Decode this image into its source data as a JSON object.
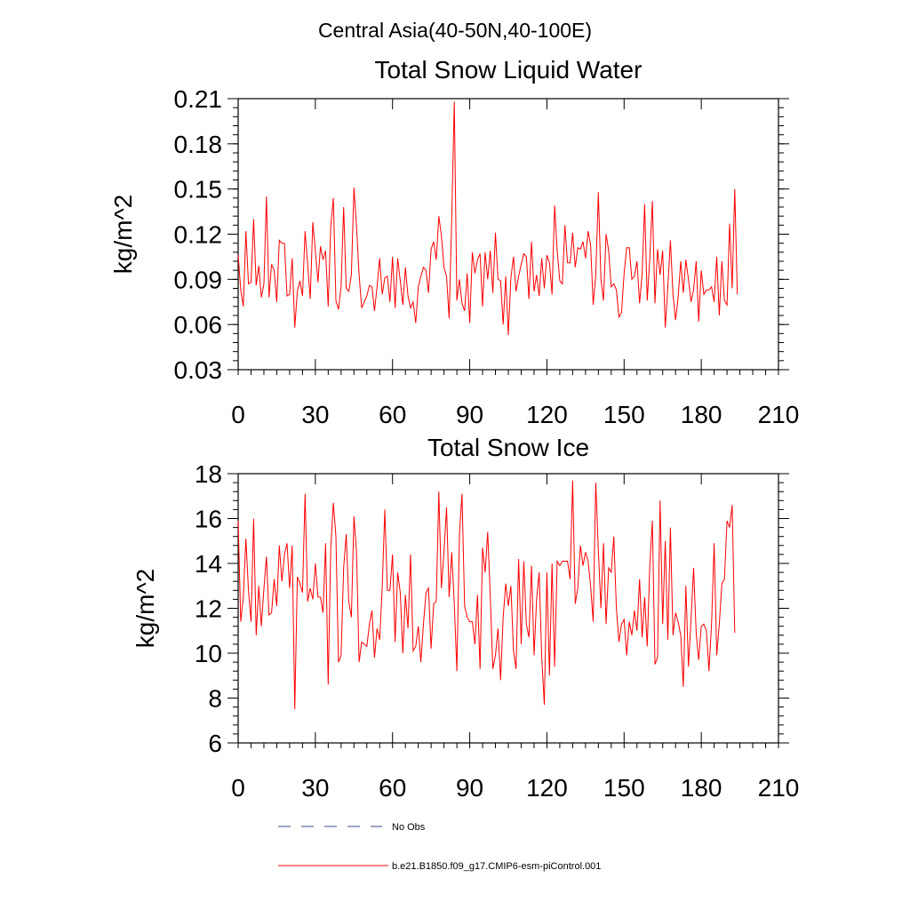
{
  "figure": {
    "title": "Central Asia(40-50N,40-100E)"
  },
  "legend": {
    "entries": [
      {
        "label": "No Obs",
        "color": "#3b4a8a",
        "style": "dashed"
      },
      {
        "label": "b.e21.B1850.f09_g17.CMIP6-esm-piControl.001",
        "color": "#ff0000",
        "style": "solid"
      }
    ]
  },
  "chart_data": [
    {
      "type": "line",
      "title": "Total Snow Liquid Water",
      "xlabel": "",
      "ylabel": "kg/m^2",
      "xlim": [
        0,
        210
      ],
      "ylim": [
        0.03,
        0.21
      ],
      "xticks": [
        0,
        30,
        60,
        90,
        120,
        150,
        180,
        210
      ],
      "xtick_labels": [
        "0",
        "30",
        "60",
        "90",
        "120",
        "150",
        "180",
        "210"
      ],
      "yticks": [
        0.03,
        0.06,
        0.09,
        0.12,
        0.15,
        0.18,
        0.21
      ],
      "ytick_labels": [
        "0.03",
        "0.06",
        "0.09",
        "0.12",
        "0.15",
        "0.18",
        "0.21"
      ],
      "grid": false,
      "series": [
        {
          "name": "b.e21.B1850.f09_g17.CMIP6-esm-piControl.001",
          "color": "#ff0000",
          "x_start": 0,
          "values": [
            0.106,
            0.083,
            0.072,
            0.122,
            0.087,
            0.088,
            0.13,
            0.086,
            0.099,
            0.078,
            0.087,
            0.145,
            0.078,
            0.1,
            0.096,
            0.075,
            0.116,
            0.114,
            0.114,
            0.079,
            0.08,
            0.104,
            0.058,
            0.082,
            0.089,
            0.079,
            0.122,
            0.1,
            0.077,
            0.128,
            0.109,
            0.088,
            0.112,
            0.103,
            0.109,
            0.072,
            0.125,
            0.144,
            0.076,
            0.07,
            0.085,
            0.138,
            0.084,
            0.082,
            0.093,
            0.151,
            0.125,
            0.093,
            0.071,
            0.075,
            0.079,
            0.086,
            0.085,
            0.069,
            0.085,
            0.104,
            0.08,
            0.091,
            0.092,
            0.075,
            0.105,
            0.071,
            0.104,
            0.089,
            0.073,
            0.098,
            0.079,
            0.071,
            0.075,
            0.061,
            0.085,
            0.092,
            0.098,
            0.096,
            0.081,
            0.11,
            0.115,
            0.103,
            0.132,
            0.119,
            0.098,
            0.092,
            0.064,
            0.13,
            0.208,
            0.076,
            0.09,
            0.074,
            0.069,
            0.094,
            0.061,
            0.108,
            0.094,
            0.103,
            0.107,
            0.072,
            0.108,
            0.09,
            0.109,
            0.081,
            0.121,
            0.09,
            0.089,
            0.06,
            0.092,
            0.053,
            0.091,
            0.105,
            0.082,
            0.092,
            0.1,
            0.107,
            0.105,
            0.077,
            0.115,
            0.082,
            0.093,
            0.079,
            0.104,
            0.084,
            0.106,
            0.101,
            0.08,
            0.139,
            0.109,
            0.089,
            0.087,
            0.126,
            0.101,
            0.101,
            0.121,
            0.098,
            0.111,
            0.11,
            0.115,
            0.104,
            0.122,
            0.113,
            0.073,
            0.093,
            0.148,
            0.09,
            0.076,
            0.12,
            0.109,
            0.085,
            0.087,
            0.083,
            0.065,
            0.068,
            0.094,
            0.111,
            0.111,
            0.09,
            0.092,
            0.102,
            0.074,
            0.094,
            0.14,
            0.076,
            0.104,
            0.142,
            0.074,
            0.11,
            0.093,
            0.109,
            0.058,
            0.085,
            0.116,
            0.08,
            0.063,
            0.078,
            0.102,
            0.081,
            0.103,
            0.09,
            0.075,
            0.083,
            0.102,
            0.062,
            0.096,
            0.08,
            0.083,
            0.083,
            0.085,
            0.075,
            0.105,
            0.066,
            0.102,
            0.076,
            0.073,
            0.127,
            0.084,
            0.15,
            0.08
          ]
        }
      ]
    },
    {
      "type": "line",
      "title": "Total Snow Ice",
      "xlabel": "",
      "ylabel": "kg/m^2",
      "xlim": [
        0,
        210
      ],
      "ylim": [
        6,
        18
      ],
      "xticks": [
        0,
        30,
        60,
        90,
        120,
        150,
        180,
        210
      ],
      "xtick_labels": [
        "0",
        "30",
        "60",
        "90",
        "120",
        "150",
        "180",
        "210"
      ],
      "yticks": [
        6,
        8,
        10,
        12,
        14,
        16,
        18
      ],
      "ytick_labels": [
        "6",
        "8",
        "10",
        "12",
        "14",
        "16",
        "18"
      ],
      "grid": false,
      "series": [
        {
          "name": "b.e21.B1850.f09_g17.CMIP6-esm-piControl.001",
          "color": "#ff0000",
          "x_start": 0,
          "values": [
            15.9,
            11.4,
            12.5,
            15.1,
            12.8,
            11.4,
            16.0,
            10.8,
            13.0,
            11.2,
            12.9,
            14.3,
            11.7,
            11.8,
            13.3,
            12.1,
            14.8,
            13.2,
            14.4,
            14.9,
            12.9,
            14.8,
            7.5,
            13.4,
            13.1,
            12.7,
            17.1,
            12.3,
            12.9,
            12.4,
            14.0,
            12.5,
            12.5,
            11.8,
            14.9,
            8.6,
            14.7,
            16.7,
            15.2,
            9.6,
            9.9,
            13.8,
            15.3,
            12.3,
            11.6,
            16.1,
            14.5,
            9.6,
            10.5,
            10.4,
            10.3,
            11.3,
            11.9,
            9.8,
            11.1,
            10.6,
            12.9,
            16.4,
            12.8,
            12.8,
            14.4,
            10.5,
            13.6,
            12.7,
            10.0,
            12.6,
            11.1,
            14.4,
            10.1,
            10.3,
            11.2,
            9.6,
            11.3,
            12.7,
            12.9,
            10.2,
            12.2,
            12.3,
            17.2,
            12.9,
            14.5,
            16.5,
            12.5,
            14.5,
            12.2,
            9.2,
            15.3,
            17.1,
            12.1,
            11.6,
            11.4,
            11.4,
            10.4,
            12.6,
            9.3,
            14.7,
            13.6,
            15.4,
            12.5,
            9.3,
            9.9,
            11.1,
            8.8,
            11.6,
            13.1,
            12.1,
            13.0,
            10.1,
            9.3,
            14.2,
            10.4,
            14.1,
            11.3,
            10.7,
            13.9,
            9.9,
            12.4,
            13.6,
            9.8,
            7.7,
            13.6,
            9.0,
            14.0,
            9.4,
            14.1,
            13.9,
            14.1,
            14.1,
            14.1,
            13.3,
            17.7,
            12.2,
            12.9,
            14.8,
            13.9,
            14.5,
            14.1,
            13.0,
            11.4,
            17.6,
            14.6,
            12.0,
            14.9,
            11.3,
            13.8,
            13.6,
            15.2,
            12.0,
            10.5,
            11.3,
            11.5,
            9.9,
            11.4,
            10.8,
            11.9,
            11.0,
            13.3,
            10.7,
            12.5,
            10.3,
            13.9,
            15.9,
            9.5,
            9.8,
            16.8,
            11.3,
            15.0,
            10.6,
            15.6,
            10.8,
            11.8,
            11.4,
            10.8,
            8.5,
            13.0,
            9.4,
            11.5,
            13.8,
            10.9,
            9.7,
            11.2,
            11.3,
            11.0,
            9.2,
            11.3,
            14.9,
            9.9,
            11.3,
            13.1,
            13.3,
            15.9,
            15.6,
            16.6,
            10.9
          ]
        }
      ]
    }
  ]
}
